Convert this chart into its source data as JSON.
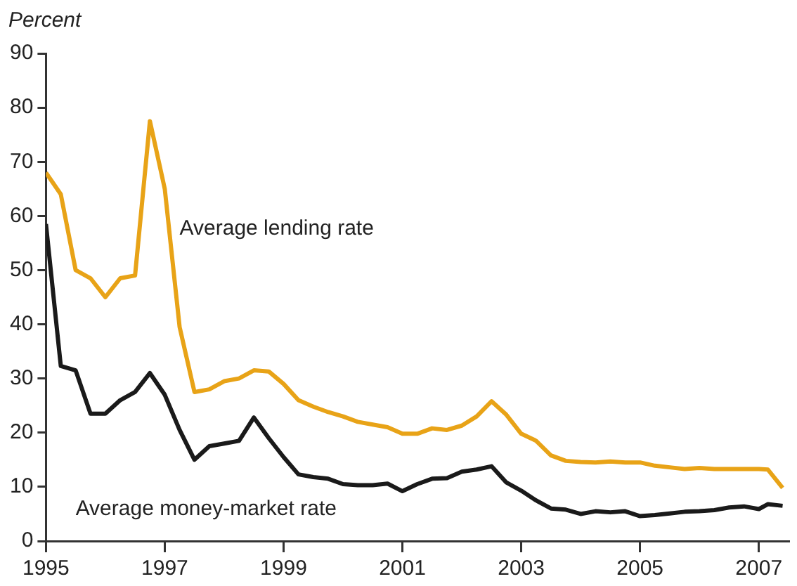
{
  "chart_data": {
    "type": "line",
    "ylabel": "Percent",
    "xlim": [
      1995,
      2007.5
    ],
    "xticks": [
      1995,
      1997,
      1999,
      2001,
      2003,
      2005,
      2007
    ],
    "ylim": [
      0,
      90
    ],
    "yticks": [
      0,
      10,
      20,
      30,
      40,
      50,
      60,
      70,
      80,
      90
    ],
    "grid": false,
    "legend": false,
    "marker": "none",
    "line_style": "solid",
    "x": [
      1995,
      1995.25,
      1995.5,
      1995.75,
      1996,
      1996.25,
      1996.5,
      1996.75,
      1997,
      1997.25,
      1997.5,
      1997.75,
      1998,
      1998.25,
      1998.5,
      1998.75,
      1999,
      1999.25,
      1999.5,
      1999.75,
      2000,
      2000.25,
      2000.5,
      2000.75,
      2001,
      2001.25,
      2001.5,
      2001.75,
      2002,
      2002.25,
      2002.5,
      2002.75,
      2003,
      2003.25,
      2003.5,
      2003.75,
      2004,
      2004.25,
      2004.5,
      2004.75,
      2005,
      2005.25,
      2005.5,
      2005.75,
      2006,
      2006.25,
      2006.5,
      2006.75,
      2007,
      2007.15,
      2007.4
    ],
    "series": [
      {
        "name": "Average lending rate",
        "color": "#e8a317",
        "values": [
          68,
          64,
          50,
          48.5,
          45,
          48.5,
          49,
          77.5,
          65,
          39.5,
          27.5,
          28,
          29.5,
          30,
          31.5,
          31.3,
          29,
          26,
          24.8,
          23.8,
          23,
          22,
          21.5,
          21,
          19.8,
          19.8,
          20.8,
          20.5,
          21.3,
          23,
          25.8,
          23.3,
          19.8,
          18.5,
          15.8,
          14.8,
          14.6,
          14.5,
          14.7,
          14.5,
          14.5,
          13.9,
          13.6,
          13.3,
          13.5,
          13.3,
          13.3,
          13.3,
          13.3,
          13.2,
          9.8
        ]
      },
      {
        "name": "Average money-market rate",
        "color": "#1a1a1a",
        "values": [
          58.5,
          32.3,
          31.5,
          23.5,
          23.5,
          26,
          27.5,
          31,
          27,
          20.5,
          15,
          17.5,
          18,
          18.5,
          22.8,
          19,
          15.5,
          12.3,
          11.8,
          11.5,
          10.5,
          10.3,
          10.3,
          10.6,
          9.2,
          10.5,
          11.5,
          11.6,
          12.8,
          13.2,
          13.8,
          10.8,
          9.3,
          7.5,
          6,
          5.8,
          5,
          5.5,
          5.3,
          5.5,
          4.6,
          4.8,
          5.1,
          5.4,
          5.5,
          5.7,
          6.2,
          6.4,
          5.9,
          6.8,
          6.5
        ]
      }
    ]
  }
}
